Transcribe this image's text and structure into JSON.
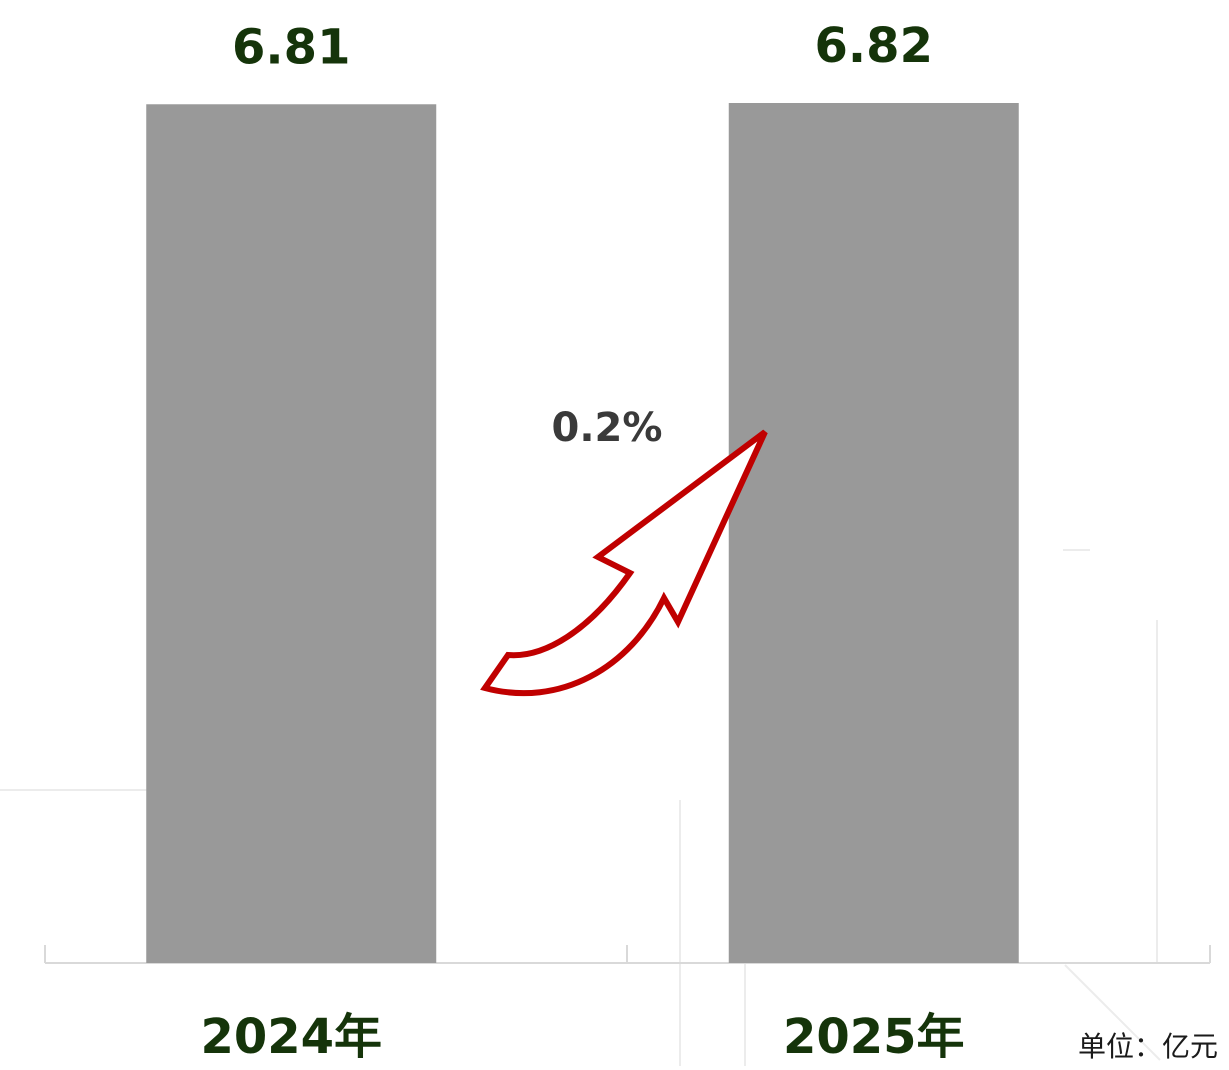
{
  "chart_data": {
    "type": "bar",
    "categories": [
      "2024年",
      "2025年"
    ],
    "values": [
      6.81,
      6.82
    ],
    "color": "#999999",
    "ylim": [
      0,
      6.82
    ],
    "annotation": "0.2%",
    "unit": "单位：亿元"
  }
}
